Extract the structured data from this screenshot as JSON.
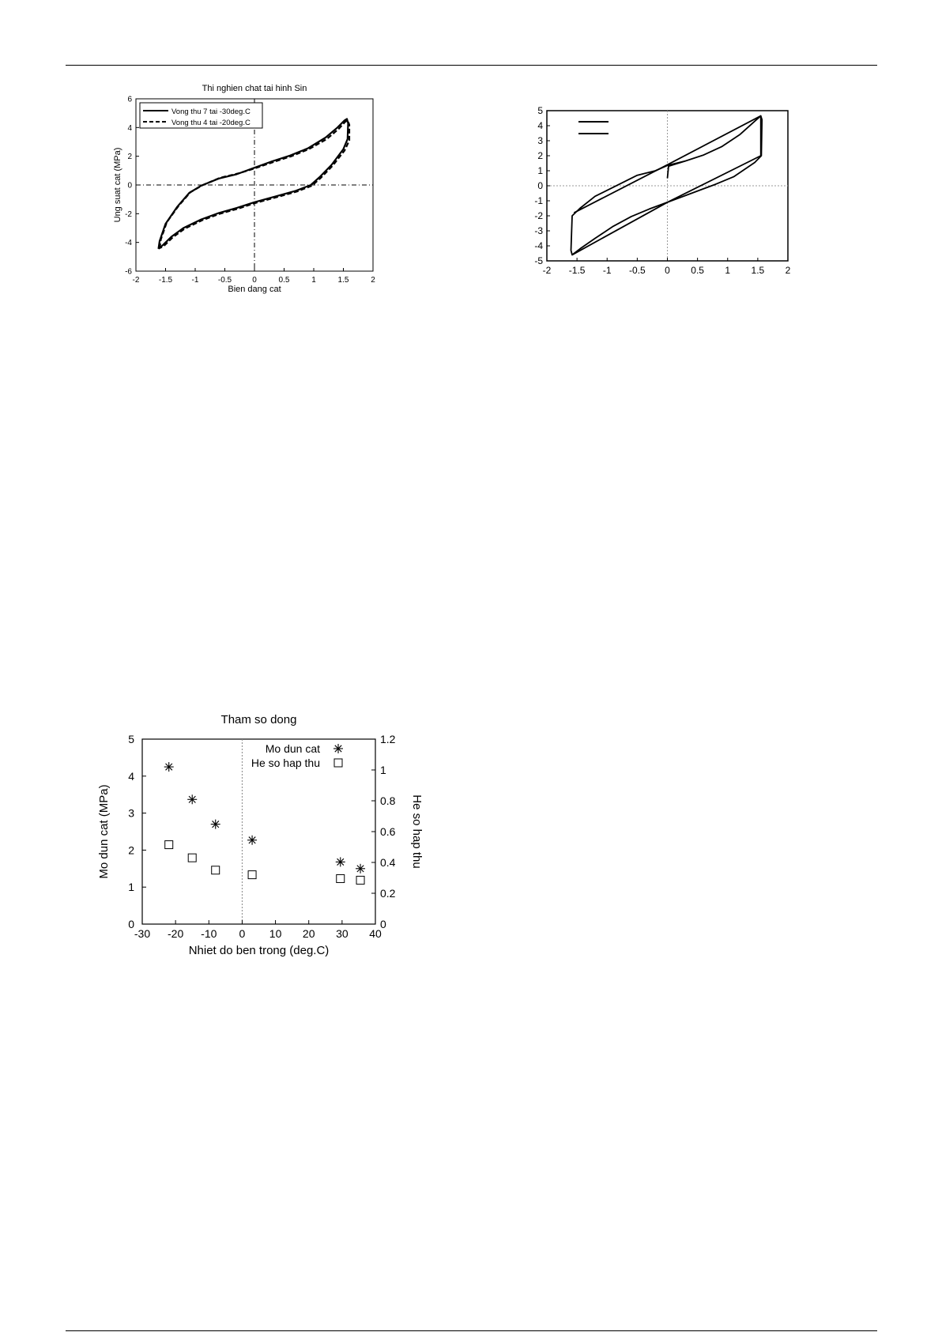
{
  "chart_data": [
    {
      "id": "chart1",
      "type": "line",
      "title": "Thi nghien chat tai hinh Sin",
      "xlabel": "Bien dang cat",
      "ylabel": "Ung suat cat (MPa)",
      "xlim": [
        -2,
        2
      ],
      "ylim": [
        -6,
        6
      ],
      "xticks": [
        -2,
        -1.5,
        -1,
        -0.5,
        0,
        0.5,
        1,
        1.5,
        2
      ],
      "yticks": [
        -6,
        -4,
        -2,
        0,
        2,
        4,
        6
      ],
      "grid": false,
      "legend_position": "top-left",
      "series": [
        {
          "name": "Vong thu 7 tai -30deg.C",
          "style": "solid",
          "points": [
            [
              -1.62,
              -4.45
            ],
            [
              -1.6,
              -3.9
            ],
            [
              -1.5,
              -2.7
            ],
            [
              -1.3,
              -1.5
            ],
            [
              -1.1,
              -0.55
            ],
            [
              -0.9,
              -0.05
            ],
            [
              -0.6,
              0.45
            ],
            [
              -0.3,
              0.75
            ],
            [
              0,
              1.2
            ],
            [
              0.3,
              1.65
            ],
            [
              0.6,
              2.05
            ],
            [
              0.9,
              2.55
            ],
            [
              1.2,
              3.3
            ],
            [
              1.4,
              4.0
            ],
            [
              1.52,
              4.5
            ],
            [
              1.56,
              4.6
            ],
            [
              1.58,
              4.3
            ],
            [
              1.57,
              3.2
            ],
            [
              1.5,
              2.5
            ],
            [
              1.3,
              1.4
            ],
            [
              1.1,
              0.55
            ],
            [
              0.95,
              0.0
            ],
            [
              0.7,
              -0.4
            ],
            [
              0.4,
              -0.75
            ],
            [
              0,
              -1.2
            ],
            [
              -0.3,
              -1.6
            ],
            [
              -0.6,
              -1.95
            ],
            [
              -0.9,
              -2.4
            ],
            [
              -1.2,
              -3.0
            ],
            [
              -1.4,
              -3.6
            ],
            [
              -1.55,
              -4.2
            ],
            [
              -1.62,
              -4.45
            ]
          ]
        },
        {
          "name": "Vong thu 4 tai -20deg.C",
          "style": "dashed",
          "points": [
            [
              -1.6,
              -4.4
            ],
            [
              -1.58,
              -3.8
            ],
            [
              -1.48,
              -2.6
            ],
            [
              -1.28,
              -1.45
            ],
            [
              -1.08,
              -0.5
            ],
            [
              -0.88,
              -0.02
            ],
            [
              -0.58,
              0.5
            ],
            [
              -0.28,
              0.8
            ],
            [
              0,
              1.15
            ],
            [
              0.32,
              1.6
            ],
            [
              0.62,
              2.0
            ],
            [
              0.92,
              2.5
            ],
            [
              1.22,
              3.2
            ],
            [
              1.42,
              3.9
            ],
            [
              1.53,
              4.4
            ],
            [
              1.57,
              4.5
            ],
            [
              1.6,
              4.2
            ],
            [
              1.6,
              3.1
            ],
            [
              1.52,
              2.4
            ],
            [
              1.32,
              1.35
            ],
            [
              1.12,
              0.5
            ],
            [
              0.97,
              -0.05
            ],
            [
              0.72,
              -0.45
            ],
            [
              0.42,
              -0.8
            ],
            [
              0.02,
              -1.25
            ],
            [
              -0.28,
              -1.65
            ],
            [
              -0.58,
              -2.0
            ],
            [
              -0.88,
              -2.45
            ],
            [
              -1.18,
              -3.05
            ],
            [
              -1.38,
              -3.65
            ],
            [
              -1.53,
              -4.25
            ],
            [
              -1.6,
              -4.4
            ]
          ]
        }
      ]
    },
    {
      "id": "chart2",
      "type": "line",
      "xlim": [
        -2,
        2
      ],
      "ylim": [
        -5,
        5
      ],
      "xticks": [
        -2,
        -1.5,
        -1,
        -0.5,
        0,
        0.5,
        1,
        1.5,
        2
      ],
      "yticks": [
        -5,
        -4,
        -3,
        -2,
        -1,
        0,
        1,
        2,
        3,
        4,
        5
      ],
      "grid": false,
      "series": [
        {
          "points": [
            [
              0,
              0.5
            ],
            [
              0.02,
              1.3
            ],
            [
              0.3,
              1.65
            ],
            [
              0.6,
              2.05
            ],
            [
              0.9,
              2.6
            ],
            [
              1.2,
              3.4
            ],
            [
              1.45,
              4.3
            ],
            [
              1.55,
              4.65
            ],
            [
              1.57,
              4.4
            ],
            [
              1.56,
              2.0
            ],
            [
              1.45,
              1.55
            ],
            [
              1.1,
              0.6
            ],
            [
              0.8,
              0.1
            ],
            [
              0.4,
              -0.5
            ],
            [
              0,
              -1.1
            ],
            [
              -0.3,
              -1.55
            ],
            [
              -0.6,
              -2.05
            ],
            [
              -0.9,
              -2.7
            ],
            [
              -1.2,
              -3.5
            ],
            [
              -1.45,
              -4.2
            ],
            [
              -1.58,
              -4.6
            ],
            [
              -1.6,
              -4.3
            ],
            [
              -1.58,
              -2.0
            ],
            [
              -1.45,
              -1.5
            ],
            [
              -1.2,
              -0.7
            ],
            [
              -0.9,
              -0.1
            ],
            [
              -0.5,
              0.7
            ],
            [
              -0.2,
              1.0
            ],
            [
              0,
              1.35
            ],
            [
              0.3,
              1.65
            ]
          ]
        },
        {
          "points": [
            [
              -1.58,
              -4.6
            ],
            [
              0,
              -1.1
            ],
            [
              1.55,
              2.0
            ],
            [
              1.55,
              4.65
            ],
            [
              0,
              1.4
            ],
            [
              -1.55,
              -1.8
            ]
          ]
        }
      ]
    },
    {
      "id": "chart3",
      "type": "scatter",
      "title": "Tham so dong",
      "xlabel": "Nhiet do ben trong (deg.C)",
      "ylabel": "Mo dun cat (MPa)",
      "y2label": "He so hap thu",
      "xlim": [
        -30,
        40
      ],
      "ylim": [
        0,
        5
      ],
      "y2lim": [
        0,
        1.2
      ],
      "xticks": [
        -30,
        -20,
        -10,
        0,
        10,
        20,
        30,
        40
      ],
      "yticks": [
        0,
        1,
        2,
        3,
        4,
        5
      ],
      "y2ticks": [
        0,
        0.2,
        0.4,
        0.6,
        0.8,
        1,
        1.2
      ],
      "legend_position": "top-right",
      "series": [
        {
          "name": "Mo dun cat",
          "marker": "asterisk",
          "axis": "left",
          "x": [
            -22,
            -15,
            -8,
            3,
            29.5,
            35.5
          ],
          "y": [
            4.25,
            3.37,
            2.7,
            2.27,
            1.68,
            1.5
          ]
        },
        {
          "name": "He so hap thu",
          "marker": "square",
          "axis": "right",
          "x": [
            -22,
            -15,
            -8,
            3,
            29.5,
            35.5
          ],
          "y": [
            0.515,
            0.43,
            0.35,
            0.32,
            0.295,
            0.285
          ]
        }
      ]
    }
  ]
}
